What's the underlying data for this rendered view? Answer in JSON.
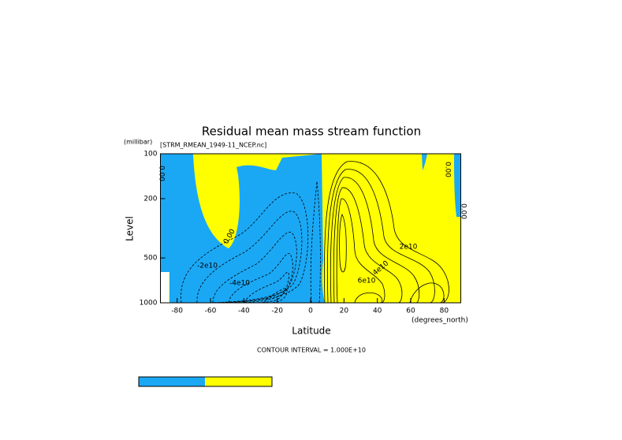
{
  "chart_data": {
    "type": "contour",
    "title": "Residual mean mass stream function",
    "subtitle": "[STRM_RMEAN_1949-11_NCEP.nc]",
    "xlabel": "Latitude",
    "ylabel": "Level",
    "x_unit": "(degrees_north)",
    "y_unit": "(millibar)",
    "xlim": [
      -90,
      90
    ],
    "xticks": [
      -80,
      -60,
      -40,
      -20,
      0,
      20,
      40,
      60,
      80
    ],
    "ylim": [
      100,
      1000
    ],
    "yticks": [
      100,
      200,
      500,
      1000
    ],
    "y_log": true,
    "y_inverted": true,
    "colors": [
      "#1aa8f5",
      "#ffff00"
    ],
    "contour_labels": [
      "0.00",
      "-2e10",
      "-4e10",
      "2e10",
      "4e10",
      "6e10",
      "0.00",
      "0.00",
      "0.00"
    ],
    "note": "CONTOUR INTERVAL = 1.000E+10"
  }
}
